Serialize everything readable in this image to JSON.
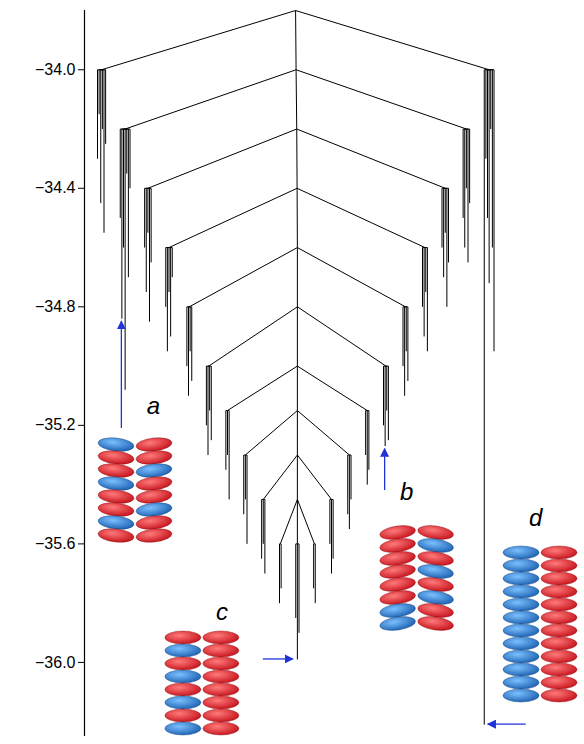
{
  "chart_data": {
    "type": "disconnectivity",
    "ylim": [
      -36.25,
      -33.8
    ],
    "yticks": [
      {
        "value": -34.0,
        "label": "−34.0"
      },
      {
        "value": -34.4,
        "label": "−34.4"
      },
      {
        "value": -34.8,
        "label": "−34.8"
      },
      {
        "value": -35.2,
        "label": "−35.2"
      },
      {
        "value": -35.6,
        "label": "−35.6"
      },
      {
        "value": -36.0,
        "label": "−36.0"
      }
    ],
    "tick_labels": "y",
    "color": "#000000",
    "tree": {
      "energy": -33.8,
      "children": [
        {
          "energy": -34.0,
          "children": [
            -34.3,
            -34.15,
            -34.45,
            -34.2,
            -34.55,
            -34.25
          ]
        },
        {
          "energy": -34.0,
          "children": [
            {
              "energy": -34.2,
              "children": [
                -34.5,
                {
                  "energy": -34.84,
                  "label": "a"
                },
                -34.6,
                -35.08,
                -34.35,
                -34.7,
                -34.4
              ]
            },
            {
              "energy": -34.2,
              "children": [
                {
                  "energy": -34.4,
                  "children": [
                    -34.6,
                    -34.75,
                    -34.55,
                    -34.85,
                    -34.65
                  ]
                },
                {
                  "energy": -34.4,
                  "children": [
                    {
                      "energy": -34.6,
                      "children": [
                        -34.8,
                        -34.95,
                        -34.75,
                        -34.9,
                        -34.7
                      ]
                    },
                    {
                      "energy": -34.6,
                      "children": [
                        {
                          "energy": -34.8,
                          "children": [
                            -35.0,
                            -35.1,
                            -34.95,
                            -35.05
                          ]
                        },
                        {
                          "energy": -34.8,
                          "children": [
                            {
                              "energy": -35.0,
                              "children": [
                                -35.2,
                                -35.3,
                                -35.15,
                                -35.25
                              ]
                            },
                            {
                              "energy": -35.0,
                              "children": [
                                {
                                  "energy": -35.15,
                                  "children": [
                                    -35.35,
                                    -35.3,
                                    -35.45
                                  ]
                                },
                                {
                                  "energy": -35.15,
                                  "children": [
                                    {
                                      "energy": -35.3,
                                      "children": [
                                        -35.5,
                                        -35.45,
                                        -35.6
                                      ]
                                    },
                                    {
                                      "energy": -35.3,
                                      "children": [
                                        {
                                          "energy": -35.45,
                                          "children": [
                                            -35.65,
                                            -35.6,
                                            -35.7
                                          ]
                                        },
                                        {
                                          "energy": -35.45,
                                          "children": [
                                            {
                                              "energy": -35.6,
                                              "children": [
                                                -35.8,
                                                -35.75
                                              ]
                                            },
                                            {
                                              "energy": -35.6,
                                              "children": [
                                                -35.85,
                                                {
                                                  "energy": -35.99,
                                                  "label": "c"
                                                },
                                                -35.9
                                              ]
                                            },
                                            {
                                              "energy": -35.6,
                                              "children": [
                                                -35.75,
                                                -35.8
                                              ]
                                            }
                                          ]
                                        },
                                        {
                                          "energy": -35.45,
                                          "children": [
                                            -35.6,
                                            -35.7,
                                            -35.65
                                          ]
                                        }
                                      ]
                                    },
                                    {
                                      "energy": -35.3,
                                      "children": [
                                        -35.5,
                                        -35.55,
                                        -35.45
                                      ]
                                    }
                                  ]
                                },
                                {
                                  "energy": -35.15,
                                  "children": [
                                    -35.3,
                                    -35.4,
                                    -35.35
                                  ]
                                }
                              ]
                            },
                            {
                              "energy": -35.0,
                              "children": [
                                -35.2,
                                {
                                  "energy": -35.27,
                                  "label": "b"
                                },
                                -35.15,
                                -35.25
                              ]
                            }
                          ]
                        },
                        {
                          "energy": -34.8,
                          "children": [
                            -35.0,
                            -35.1,
                            -34.95,
                            -35.05
                          ]
                        }
                      ]
                    },
                    {
                      "energy": -34.6,
                      "children": [
                        -34.8,
                        -34.9,
                        -34.75,
                        -34.95
                      ]
                    }
                  ]
                },
                {
                  "energy": -34.4,
                  "children": [
                    -34.6,
                    -34.7,
                    -34.55,
                    -34.8,
                    -34.65
                  ]
                }
              ]
            },
            {
              "energy": -34.2,
              "children": [
                -34.5,
                -34.6,
                -34.4,
                -34.65,
                -34.45
              ]
            }
          ]
        },
        {
          "energy": -34.0,
          "children": [
            {
              "energy": -36.21,
              "label": "d"
            },
            -34.3,
            -34.5,
            -34.72,
            -34.2,
            -34.6,
            -34.95
          ]
        }
      ]
    }
  }
}
